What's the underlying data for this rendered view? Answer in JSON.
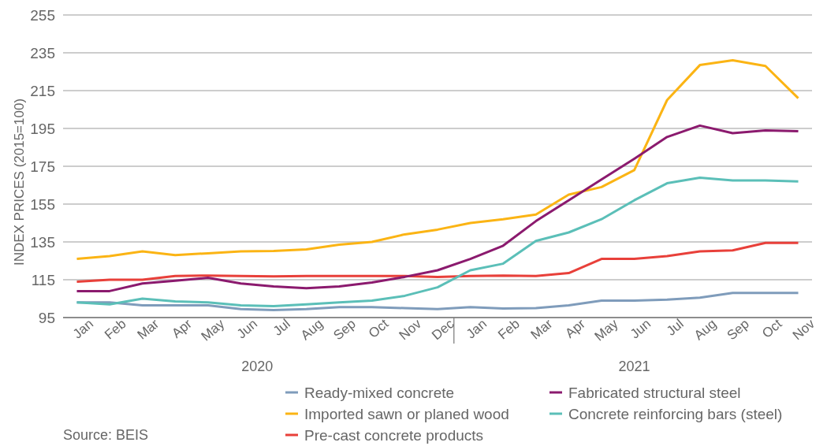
{
  "chart_data": {
    "type": "line",
    "ylabel": "INDEX PRICES (2015=100)",
    "categories": [
      "Jan",
      "Feb",
      "Mar",
      "Apr",
      "May",
      "Jun",
      "Jul",
      "Aug",
      "Sep",
      "Oct",
      "Nov",
      "Dec",
      "Jan",
      "Feb",
      "Mar",
      "Apr",
      "May",
      "Jun",
      "Jul",
      "Aug",
      "Sep",
      "Oct",
      "Nov"
    ],
    "ylim": [
      95,
      255
    ],
    "yticks": [
      95,
      115,
      135,
      155,
      175,
      195,
      215,
      235,
      255
    ],
    "grid": "y",
    "legend": "bottom",
    "line_style": "solid",
    "marker": "none",
    "annotations": [
      "2020",
      "2021",
      "Source: BEIS"
    ],
    "series": [
      {
        "name": "Ready-mixed concrete",
        "color": "#7f9cbb",
        "values": [
          103,
          103,
          101.5,
          101.5,
          101.5,
          99.5,
          99,
          99.5,
          100.5,
          100.5,
          100,
          99.5,
          100.5,
          99.8,
          100,
          101.5,
          104,
          104,
          104.5,
          105.5,
          108,
          108,
          108
        ]
      },
      {
        "name": "Imported sawn or planed wood",
        "color": "#fbb414",
        "values": [
          126,
          127.5,
          130,
          128,
          129,
          130,
          130.2,
          131,
          133.5,
          135,
          139,
          141.5,
          145,
          147,
          149.5,
          160,
          164,
          173,
          210,
          228.5,
          231,
          228,
          211
        ]
      },
      {
        "name": "Pre-cast concrete products",
        "color": "#e8403a",
        "values": [
          114,
          115,
          115,
          117,
          117.2,
          117,
          116.8,
          117,
          117,
          117,
          117,
          116.5,
          117,
          117.2,
          117,
          118.5,
          126,
          126,
          127.5,
          130,
          130.5,
          134.5,
          134.5
        ]
      },
      {
        "name": "Fabricated structural steel",
        "color": "#8b1a6e",
        "values": [
          109,
          109,
          113,
          114.5,
          116,
          113,
          111.5,
          110.5,
          111.5,
          113.5,
          116.5,
          120,
          126,
          133,
          146,
          157,
          168,
          179,
          190.5,
          196.5,
          192.5,
          194,
          193.5
        ]
      },
      {
        "name": "Concrete reinforcing bars (steel)",
        "color": "#5bbfb8",
        "values": [
          103,
          102,
          105,
          103.5,
          103,
          101.5,
          101,
          102,
          103,
          104,
          106.5,
          111,
          120,
          123.5,
          135.5,
          140,
          147,
          157,
          166,
          169,
          167.5,
          167.5,
          167
        ]
      }
    ]
  }
}
